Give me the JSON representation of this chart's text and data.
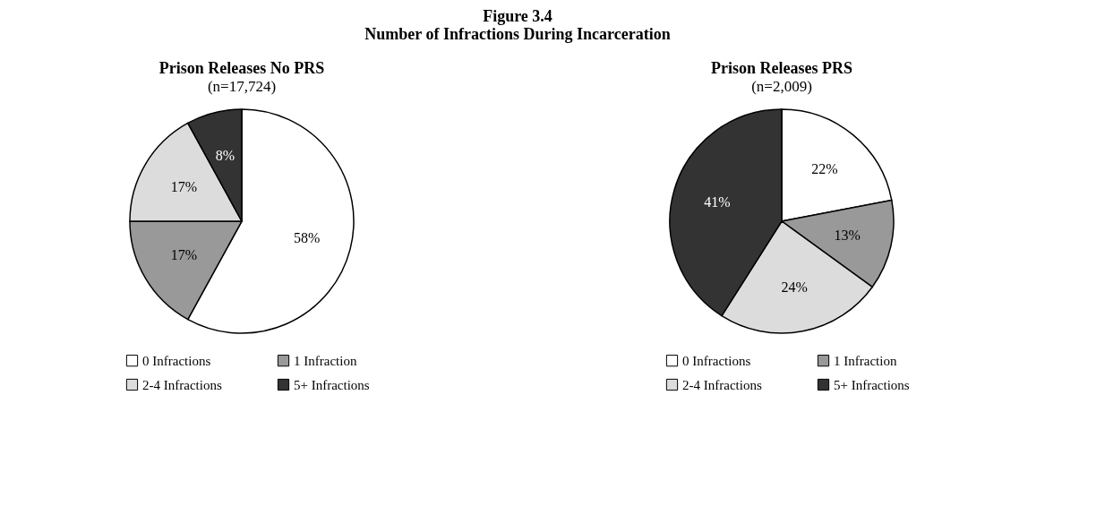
{
  "chart_data": [
    {
      "type": "pie",
      "title": "Prison Releases No PRS",
      "subtitle": "(n=17,724)",
      "annotations": [
        "Figure 3.4",
        "Number of Infractions During Incarceration"
      ],
      "categories": [
        "0 Infractions",
        "1 Infraction",
        "2-4 Infractions",
        "5+ Infractions"
      ],
      "values": [
        58,
        17,
        17,
        8
      ],
      "value_labels": [
        "58%",
        "17%",
        "17%",
        "8%"
      ],
      "colors": [
        "#ffffff",
        "#999999",
        "#dcdcdc",
        "#333333"
      ],
      "legend": "bottom"
    },
    {
      "type": "pie",
      "title": "Prison Releases PRS",
      "subtitle": "(n=2,009)",
      "categories": [
        "0 Infractions",
        "1 Infraction",
        "2-4 Infractions",
        "5+ Infractions"
      ],
      "values": [
        22,
        13,
        24,
        41
      ],
      "value_labels": [
        "22%",
        "13%",
        "24%",
        "41%"
      ],
      "colors": [
        "#ffffff",
        "#999999",
        "#dcdcdc",
        "#333333"
      ],
      "legend": "bottom"
    }
  ]
}
